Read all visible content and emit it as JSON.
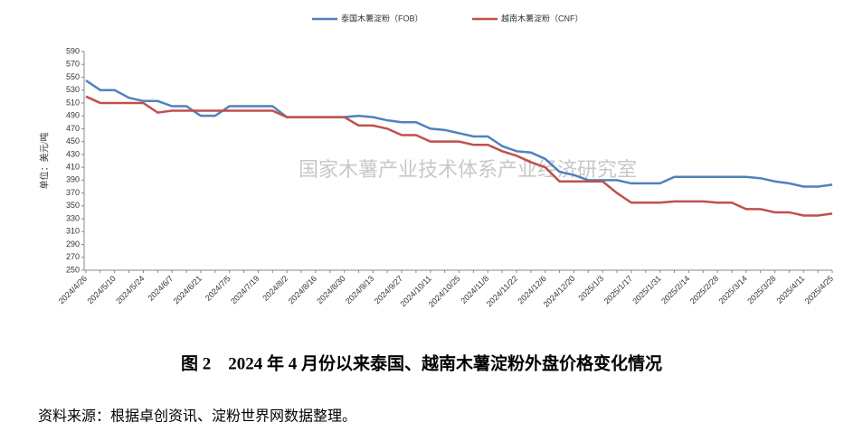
{
  "chart_data": {
    "type": "line",
    "caption": "图 2　2024 年 4 月份以来泰国、越南木薯淀粉外盘价格变化情况",
    "source": "资料来源：根据卓创资讯、淀粉世界网数据整理。",
    "y_label": "单位：美元/吨",
    "watermark": "国家木薯产业技术体系产业经济研究室",
    "categories": [
      "2024/4/26",
      null,
      "2024/5/10",
      null,
      "2024/5/24",
      null,
      "2024/6/7",
      null,
      "2024/6/21",
      null,
      "2024/7/5",
      null,
      "2024/7/19",
      null,
      "2024/8/2",
      null,
      "2024/8/16",
      null,
      "2024/8/30",
      null,
      "2024/9/13",
      null,
      "2024/9/27",
      null,
      "2024/10/11",
      null,
      "2024/10/25",
      null,
      "2024/11/8",
      null,
      "2024/11/22",
      null,
      "2024/12/6",
      null,
      "2024/12/20",
      null,
      "2025/1/3",
      null,
      "2025/1/17",
      null,
      "2025/1/31",
      null,
      "2025/2/14",
      null,
      "2025/2/28",
      null,
      "2025/3/14",
      null,
      "2025/3/28",
      null,
      "2025/4/11",
      null,
      "2025/4/25"
    ],
    "series": [
      {
        "name": "泰国木薯淀粉（FOB）",
        "color": "#4f81bd",
        "values": [
          545,
          530,
          530,
          518,
          513,
          513,
          505,
          505,
          490,
          490,
          505,
          505,
          505,
          505,
          488,
          488,
          488,
          488,
          488,
          490,
          488,
          483,
          480,
          480,
          470,
          468,
          463,
          458,
          458,
          443,
          435,
          433,
          423,
          403,
          398,
          390,
          390,
          390,
          385,
          385,
          385,
          395,
          395,
          395,
          395,
          395,
          395,
          393,
          388,
          385,
          380,
          380,
          383
        ]
      },
      {
        "name": "越南木薯淀粉（CNF）",
        "color": "#c0504d",
        "values": [
          520,
          510,
          510,
          510,
          510,
          495,
          498,
          498,
          498,
          498,
          498,
          498,
          498,
          498,
          488,
          488,
          488,
          488,
          488,
          475,
          475,
          470,
          460,
          460,
          450,
          450,
          450,
          445,
          445,
          435,
          428,
          418,
          410,
          388,
          388,
          388,
          388,
          370,
          355,
          355,
          355,
          357,
          357,
          357,
          355,
          355,
          345,
          345,
          340,
          340,
          335,
          335,
          338
        ]
      }
    ],
    "ylim": [
      250,
      590
    ],
    "yticks": [
      250,
      270,
      290,
      310,
      330,
      350,
      370,
      390,
      410,
      430,
      450,
      470,
      490,
      510,
      530,
      550,
      570,
      590
    ],
    "grid": false,
    "legend": "top"
  }
}
